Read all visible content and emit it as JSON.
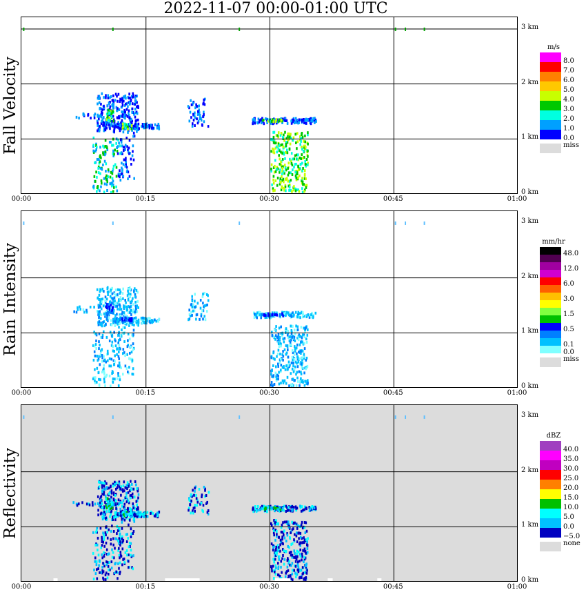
{
  "title": "2022-11-07   00:00-01:00 UTC",
  "chart_data": [
    {
      "type": "heatmap",
      "ylabel": "Fall Velocity",
      "x_ticks": [
        "00:00",
        "00:15",
        "00:30",
        "00:45",
        "01:00"
      ],
      "y_ticks": [
        "3 km",
        "2 km",
        "1 km",
        "0 km"
      ],
      "ylim_km": [
        0,
        3.2
      ],
      "xlim_min": [
        0,
        60
      ],
      "grid": true,
      "background": "#ffffff",
      "legend": {
        "unit": "m/s",
        "levels": [
          "8.0",
          "7.0",
          "6.0",
          "5.0",
          "4.0",
          "3.0",
          "2.0",
          "1.0",
          "0.0"
        ],
        "colors": [
          "#ff00ff",
          "#ff0000",
          "#ff8000",
          "#ffc800",
          "#c8ff00",
          "#00c800",
          "#00ffe0",
          "#00a0ff",
          "#0000ff"
        ],
        "missing_label": "miss"
      }
    },
    {
      "type": "heatmap",
      "ylabel": "Rain Intensity",
      "x_ticks": [
        "00:00",
        "00:15",
        "00:30",
        "00:45",
        "01:00"
      ],
      "y_ticks": [
        "3 km",
        "2 km",
        "1 km",
        "0 km"
      ],
      "ylim_km": [
        0,
        3.2
      ],
      "xlim_min": [
        0,
        60
      ],
      "grid": true,
      "background": "#ffffff",
      "legend": {
        "unit": "mm/hr",
        "levels": [
          "48.0",
          "",
          "12.0",
          "",
          "6.0",
          "",
          "3.0",
          "",
          "1.5",
          "",
          "0.5",
          "",
          "0.1",
          "0.0"
        ],
        "colors": [
          "#000000",
          "#500050",
          "#a000a0",
          "#d000d0",
          "#ff0000",
          "#ff6000",
          "#ffc000",
          "#ffff00",
          "#80ff40",
          "#00c000",
          "#0000ff",
          "#0080ff",
          "#00c0ff",
          "#80ffff"
        ],
        "missing_label": "miss"
      }
    },
    {
      "type": "heatmap",
      "ylabel": "Reflectivity",
      "x_ticks": [
        "00:00",
        "00:15",
        "00:30",
        "00:45",
        "01:00"
      ],
      "y_ticks": [
        "3 km",
        "2 km",
        "1 km",
        "0 km"
      ],
      "ylim_km": [
        0,
        3.2
      ],
      "xlim_min": [
        0,
        60
      ],
      "grid": true,
      "background": "#dcdcdc",
      "legend": {
        "unit": "dBZ",
        "levels": [
          "40.0",
          "35.0",
          "30.0",
          "25.0",
          "20.0",
          "15.0",
          "10.0",
          "5.0",
          "0.0",
          "−5.0"
        ],
        "colors": [
          "#a040c0",
          "#ff00ff",
          "#c000c0",
          "#ff0000",
          "#ff8000",
          "#ffff00",
          "#00c000",
          "#00ffff",
          "#00c0ff",
          "#0000c0"
        ],
        "missing_label": "none"
      }
    }
  ]
}
